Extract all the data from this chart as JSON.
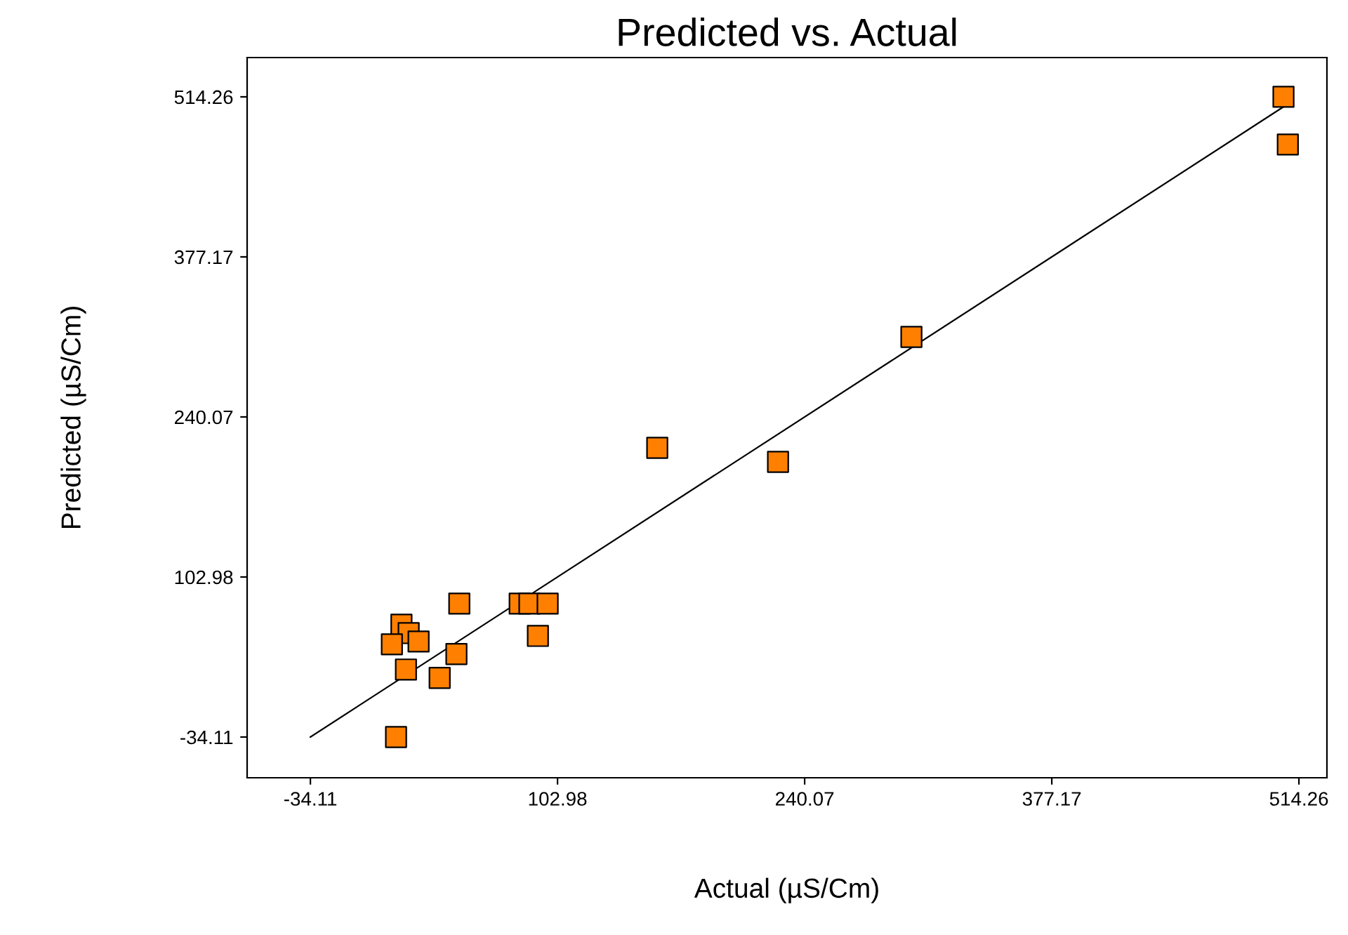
{
  "chart_data": {
    "type": "scatter",
    "title": "Predicted vs. Actual",
    "xlabel": "Actual (µS/Cm)",
    "ylabel": "Predicted (µS/Cm)",
    "xlim": [
      -69.2,
      529.8
    ],
    "ylim": [
      -69.0,
      547.9
    ],
    "xticks": [
      -34.11,
      102.98,
      240.07,
      377.17,
      514.26
    ],
    "yticks": [
      -34.11,
      102.98,
      240.07,
      377.17,
      514.26
    ],
    "grid": false,
    "legend": false,
    "series": [
      {
        "marker": "square",
        "color": "#ff8000",
        "x": [
          505.7,
          508.1,
          299.3,
          158.3,
          225.3,
          48.5,
          82.0,
          87.4,
          97.5,
          92.1,
          16.4,
          20.4,
          11.1,
          25.9,
          46.9,
          18.9,
          37.6,
          13.4
        ],
        "values": [
          514.3,
          473.4,
          308.6,
          213.6,
          201.6,
          80.2,
          80.2,
          80.2,
          80.2,
          52.5,
          62.1,
          54.9,
          45.3,
          47.7,
          37.0,
          23.7,
          16.5,
          -34.1
        ]
      },
      {
        "type": "line",
        "color": "#000000",
        "x": [
          -34.1,
          511.0
        ],
        "values": [
          -34.1,
          511.0
        ]
      }
    ]
  }
}
